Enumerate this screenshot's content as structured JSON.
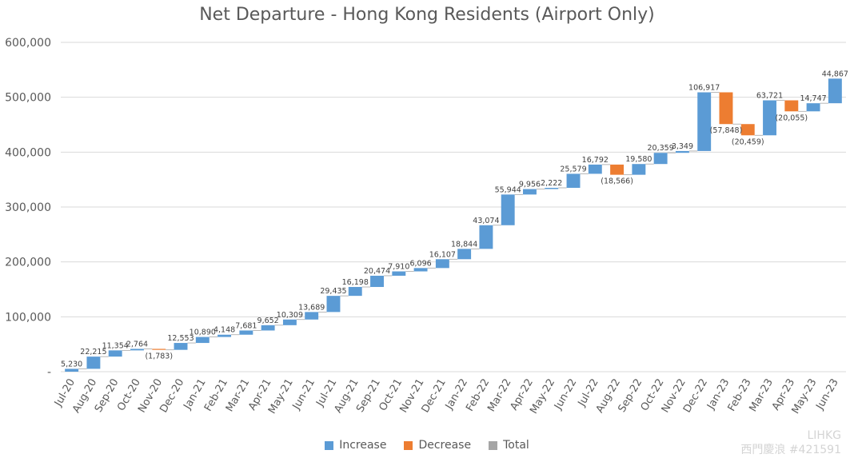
{
  "chart_data": {
    "type": "bar",
    "subtype": "waterfall",
    "title": "Net Departure - Hong Kong Residents (Airport Only)",
    "xlabel": "",
    "ylabel": "",
    "ylim": [
      0,
      600000
    ],
    "yticks": [
      {
        "value": 0,
        "label": "-"
      },
      {
        "value": 100000,
        "label": "100,000"
      },
      {
        "value": 200000,
        "label": "200,000"
      },
      {
        "value": 300000,
        "label": "300,000"
      },
      {
        "value": 400000,
        "label": "400,000"
      },
      {
        "value": 500000,
        "label": "500,000"
      },
      {
        "value": 600000,
        "label": "600,000"
      }
    ],
    "grid": true,
    "legend_position": "bottom",
    "categories": [
      "Jul-20",
      "Aug-20",
      "Sep-20",
      "Oct-20",
      "Nov-20",
      "Dec-20",
      "Jan-21",
      "Feb-21",
      "Mar-21",
      "Apr-21",
      "May-21",
      "Jun-21",
      "Jul-21",
      "Aug-21",
      "Sep-21",
      "Oct-21",
      "Nov-21",
      "Dec-21",
      "Jan-22",
      "Feb-22",
      "Mar-22",
      "Apr-22",
      "May-22",
      "Jun-22",
      "Jul-22",
      "Aug-22",
      "Sep-22",
      "Oct-22",
      "Nov-22",
      "Dec-22",
      "Jan-23",
      "Feb-23",
      "Mar-23",
      "Apr-23",
      "May-23",
      "Jun-23"
    ],
    "values": [
      5230,
      22215,
      11354,
      2764,
      -1783,
      12553,
      10890,
      4148,
      7681,
      9652,
      10309,
      13689,
      29435,
      16198,
      20474,
      7910,
      6096,
      16107,
      18844,
      43074,
      55944,
      9956,
      2222,
      25579,
      16792,
      -18566,
      19580,
      20359,
      3349,
      106917,
      -57848,
      -20459,
      63721,
      -20055,
      14747,
      44867
    ],
    "data_labels": [
      "5,230",
      "22,215",
      "11,354",
      "2,764",
      "(1,783)",
      "12,553",
      "10,890",
      "4,148",
      "7,681",
      "9,652",
      "10,309",
      "13,689",
      "29,435",
      "16,198",
      "20,474",
      "7,910",
      "6,096",
      "16,107",
      "18,844",
      "43,074",
      "55,944",
      "9,956",
      "2,222",
      "25,579",
      "16,792",
      "(18,566)",
      "19,580",
      "20,359",
      "3,349",
      "106,917",
      "(57,848)",
      "(20,459)",
      "63,721",
      "(20,055)",
      "14,747",
      "44,867"
    ],
    "legend": [
      {
        "name": "Increase",
        "color": "#5B9BD5"
      },
      {
        "name": "Decrease",
        "color": "#ED7D31"
      },
      {
        "name": "Total",
        "color": "#A5A5A5"
      }
    ],
    "colors": {
      "increase": "#5B9BD5",
      "decrease": "#ED7D31",
      "total": "#A5A5A5",
      "grid": "#D9D9D9",
      "text": "#595959"
    }
  },
  "watermark": {
    "line1": "LIHKG",
    "line2": "西門慶浪 #421591"
  }
}
